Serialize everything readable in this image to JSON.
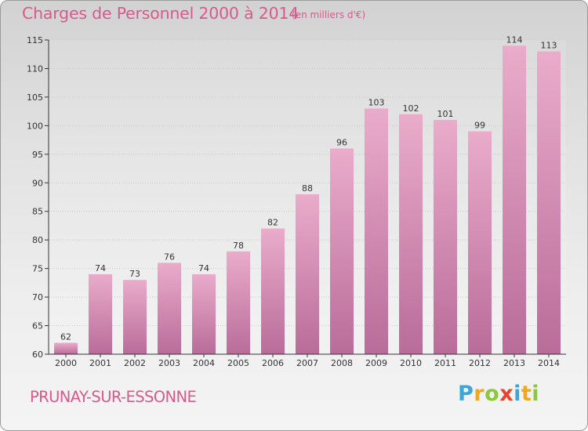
{
  "title": "Charges de Personnel 2000 à 2014",
  "subtitle": "(en milliers d'€)",
  "city": "PRUNAY-SUR-ESSONNE",
  "logo": {
    "letters": [
      "P",
      "r",
      "o",
      "x",
      "i",
      "t",
      "i"
    ],
    "colors": [
      "#39a8d8",
      "#f0a81e",
      "#8dc63f",
      "#e8452c",
      "#39a8d8",
      "#f0a81e",
      "#8dc63f"
    ]
  },
  "colors": {
    "bar_light": "#eaaccb",
    "bar_dark": "#b96c99",
    "accent": "#d65a8c"
  },
  "chart_data": {
    "type": "bar",
    "categories": [
      "2000",
      "2001",
      "2002",
      "2003",
      "2004",
      "2005",
      "2006",
      "2007",
      "2008",
      "2009",
      "2010",
      "2011",
      "2012",
      "2013",
      "2014"
    ],
    "values": [
      62,
      74,
      73,
      76,
      74,
      78,
      82,
      88,
      96,
      103,
      102,
      101,
      99,
      114,
      113
    ],
    "ylim": [
      60,
      115
    ],
    "yticks": [
      60,
      65,
      70,
      75,
      80,
      85,
      90,
      95,
      100,
      105,
      110,
      115
    ],
    "grid": true
  }
}
